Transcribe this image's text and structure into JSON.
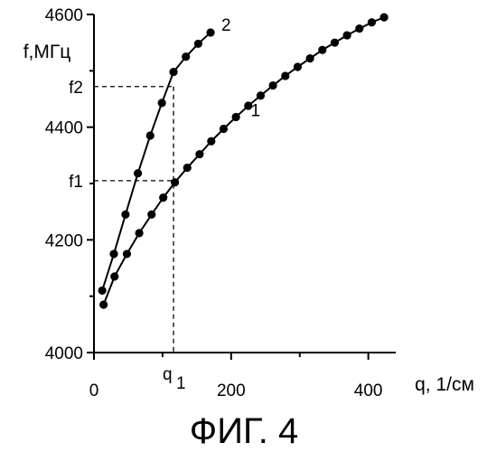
{
  "chart_data": {
    "type": "line",
    "title": "",
    "caption": "ФИГ. 4",
    "xlabel": "q, 1/см",
    "ylabel": "f,МГц",
    "xlim": [
      0,
      440
    ],
    "ylim": [
      4000,
      4600
    ],
    "x_ticks": [
      0,
      200,
      400
    ],
    "y_ticks": [
      4000,
      4200,
      4400,
      4600
    ],
    "grid": false,
    "legend": "none",
    "series": [
      {
        "name": "1",
        "color": "#000000",
        "x": [
          14,
          30,
          48,
          66,
          84,
          101,
          118,
          136,
          154,
          171,
          189,
          207,
          225,
          243,
          261,
          279,
          297,
          315,
          333,
          351,
          369,
          387,
          405,
          423
        ],
        "y": [
          4085,
          4135,
          4175,
          4212,
          4245,
          4275,
          4302,
          4328,
          4352,
          4375,
          4397,
          4418,
          4438,
          4456,
          4474,
          4491,
          4507,
          4522,
          4537,
          4550,
          4563,
          4575,
          4586,
          4595
        ]
      },
      {
        "name": "2",
        "color": "#000000",
        "x": [
          12,
          29,
          46,
          64,
          82,
          99,
          116,
          134,
          152,
          170
        ],
        "y": [
          4110,
          4175,
          4245,
          4318,
          4385,
          4443,
          4498,
          4525,
          4548,
          4568
        ]
      }
    ],
    "annotations": {
      "q_marker": {
        "label": "q",
        "subscript": "1",
        "x": 116
      },
      "f_markers": [
        {
          "label": "f1",
          "y": 4305
        },
        {
          "label": "f2",
          "y": 4472
        }
      ]
    }
  }
}
